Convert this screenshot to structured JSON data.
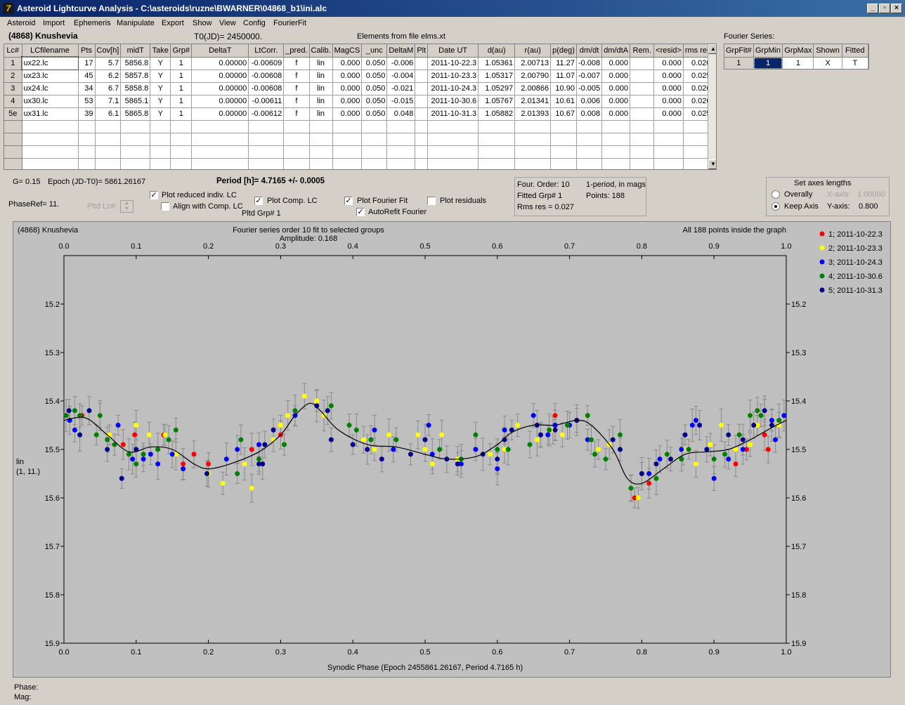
{
  "window": {
    "title": "Asteroid Lightcurve Analysis - C:\\asteroids\\ruzne\\BWARNER\\04868_b1\\ini.alc",
    "icon_name": "app-icon",
    "icon_glyph": "7"
  },
  "menu": [
    "Asteroid",
    "Import",
    "Ephemeris",
    "Manipulate",
    "Export",
    "Show",
    "View",
    "Config",
    "FourierFit"
  ],
  "header": {
    "asteroid": "(4868) Knushevia",
    "t0": "T0(JD)= 2450000.",
    "elements": "Elements from file elms.xt",
    "fourier_series_label": "Fourier Series:"
  },
  "lc_table": {
    "columns": [
      "Lc#",
      "LCfilename",
      "Pts",
      "Cov[h]",
      "midT",
      "Take",
      "Grp#",
      "DeltaT",
      "LtCorr.",
      "_pred.",
      "Calib.",
      "MagCS",
      "_unc",
      "DeltaM",
      "Plt",
      "Date UT",
      "d(au)",
      "r(au)",
      "p(deg)",
      "dm/dt",
      "dm/dtA",
      "Rem.",
      "<resid>",
      "rms res"
    ],
    "rows": [
      [
        "1",
        "ux22.lc",
        "17",
        "5.7",
        "5856.8",
        "Y",
        "1",
        "0.00000",
        "-0.00609",
        "f",
        "lin",
        "0.000",
        "0.050",
        "-0.006",
        "",
        "2011-10-22.3",
        "1.05361",
        "2.00713",
        "11.27",
        "-0.008",
        "0.000",
        "",
        "0.000",
        "0.020"
      ],
      [
        "2",
        "ux23.lc",
        "45",
        "6.2",
        "5857.8",
        "Y",
        "1",
        "0.00000",
        "-0.00608",
        "f",
        "lin",
        "0.000",
        "0.050",
        "-0.004",
        "",
        "2011-10-23.3",
        "1.05317",
        "2.00790",
        "11.07",
        "-0.007",
        "0.000",
        "",
        "0.000",
        "0.025"
      ],
      [
        "3",
        "ux24.lc",
        "34",
        "6.7",
        "5858.8",
        "Y",
        "1",
        "0.00000",
        "-0.00608",
        "f",
        "lin",
        "0.000",
        "0.050",
        "-0.021",
        "",
        "2011-10-24.3",
        "1.05297",
        "2.00866",
        "10.90",
        "-0.005",
        "0.000",
        "",
        "0.000",
        "0.026"
      ],
      [
        "4",
        "ux30.lc",
        "53",
        "7.1",
        "5865.1",
        "Y",
        "1",
        "0.00000",
        "-0.00611",
        "f",
        "lin",
        "0.000",
        "0.050",
        "-0.015",
        "",
        "2011-10-30.6",
        "1.05767",
        "2.01341",
        "10.61",
        "0.006",
        "0.000",
        "",
        "0.000",
        "0.026"
      ],
      [
        "5e",
        "ux31.lc",
        "39",
        "6.1",
        "5865.8",
        "Y",
        "1",
        "0.00000",
        "-0.00612",
        "f",
        "lin",
        "0.000",
        "0.050",
        "0.048",
        "",
        "2011-10-31.3",
        "1.05882",
        "2.01393",
        "10.67",
        "0.008",
        "0.000",
        "",
        "0.000",
        "0.025"
      ]
    ],
    "empty_rows": 4
  },
  "fs_table": {
    "columns": [
      "GrpFit#",
      "GrpMin",
      "GrpMax",
      "Shown",
      "Fitted"
    ],
    "row": [
      "1",
      "1",
      "1",
      "X",
      "T"
    ]
  },
  "params": {
    "g": "G= 0.15",
    "epoch": "Epoch (JD-T0)= 5861.26167",
    "period": "Period [h]= 4.7165 +/- 0.0005",
    "phaseref": "PhaseRef= 11.",
    "pltd_lc": "Pltd Lc#:",
    "pltd_grp": "Pltd Grp#  1"
  },
  "checkboxes": {
    "plot_reduced": {
      "label": "Plot reduced indiv. LC",
      "checked": true
    },
    "align_comp": {
      "label": "Align with Comp. LC",
      "checked": false
    },
    "plot_comp": {
      "label": "Plot Comp. LC",
      "checked": true
    },
    "plot_fourier": {
      "label": "Plot Fourier Fit",
      "checked": true
    },
    "autorefit": {
      "label": "AutoRefit Fourier",
      "checked": true
    },
    "plot_residuals": {
      "label": "Plot residuals",
      "checked": false
    }
  },
  "fit_info": {
    "order": "Four. Order: 10",
    "one_period": "1-period, in mags",
    "fitted_grp": "Fitted Grp# 1",
    "points": "Points: 188",
    "rms": "Rms res      = 0.027"
  },
  "axes_box": {
    "title": "Set axes lengths",
    "overally": "Overally",
    "keep_axis": "Keep Axis",
    "xaxis_label": "X-axis:",
    "xaxis_value": "1.00000",
    "yaxis_label": "Y-axis:",
    "yaxis_value": "0.800",
    "selected": "keep_axis"
  },
  "plot": {
    "top_left": "(4868) Knushevia",
    "top_center1": "Fourier series order 10 fit to selected groups",
    "top_center2": "Amplitude: 0.168",
    "top_right": "All 188 points inside the graph",
    "ylabel1": "lin",
    "ylabel2": "(1, 11.)",
    "xlabel": "Synodic Phase (Epoch 2455861.26167, Period 4.7165 h)"
  },
  "status": {
    "phase": "Phase:",
    "mag": "Mag:"
  },
  "chart_data": {
    "type": "scatter",
    "xlim": [
      0,
      1
    ],
    "ylim": [
      15.9,
      15.1
    ],
    "y_inverted": true,
    "x_ticks": [
      "0.0",
      "0.1",
      "0.2",
      "0.3",
      "0.4",
      "0.5",
      "0.6",
      "0.7",
      "0.8",
      "0.9",
      "1.0"
    ],
    "y_ticks": [
      "15.2",
      "15.3",
      "15.4",
      "15.5",
      "15.6",
      "15.7",
      "15.8",
      "15.9"
    ],
    "legend_placement": "right",
    "series": [
      {
        "name": "1; 2011-10-22.3",
        "color": "#ff0000",
        "points": [
          [
            0.025,
            15.43
          ],
          [
            0.082,
            15.49
          ],
          [
            0.098,
            15.47
          ],
          [
            0.138,
            15.47
          ],
          [
            0.165,
            15.53
          ],
          [
            0.18,
            15.51
          ],
          [
            0.2,
            15.53
          ],
          [
            0.26,
            15.5
          ],
          [
            0.3,
            15.47
          ],
          [
            0.68,
            15.43
          ],
          [
            0.79,
            15.6
          ],
          [
            0.81,
            15.57
          ],
          [
            0.93,
            15.53
          ],
          [
            0.945,
            15.5
          ],
          [
            0.97,
            15.47
          ],
          [
            0.975,
            15.5
          ]
        ]
      },
      {
        "name": "2; 2011-10-23.3",
        "color": "#ffff00",
        "points": [
          [
            0.05,
            15.43
          ],
          [
            0.063,
            15.47
          ],
          [
            0.1,
            15.45
          ],
          [
            0.118,
            15.47
          ],
          [
            0.14,
            15.47
          ],
          [
            0.155,
            15.51
          ],
          [
            0.2,
            15.55
          ],
          [
            0.22,
            15.57
          ],
          [
            0.25,
            15.53
          ],
          [
            0.26,
            15.58
          ],
          [
            0.29,
            15.48
          ],
          [
            0.3,
            15.45
          ],
          [
            0.31,
            15.43
          ],
          [
            0.333,
            15.39
          ],
          [
            0.35,
            15.4
          ],
          [
            0.36,
            15.43
          ],
          [
            0.415,
            15.48
          ],
          [
            0.43,
            15.5
          ],
          [
            0.45,
            15.47
          ],
          [
            0.49,
            15.47
          ],
          [
            0.5,
            15.5
          ],
          [
            0.51,
            15.53
          ],
          [
            0.523,
            15.47
          ],
          [
            0.545,
            15.52
          ],
          [
            0.59,
            15.51
          ],
          [
            0.6,
            15.52
          ],
          [
            0.61,
            15.5
          ],
          [
            0.628,
            15.45
          ],
          [
            0.655,
            15.48
          ],
          [
            0.677,
            15.46
          ],
          [
            0.69,
            15.47
          ],
          [
            0.74,
            15.5
          ],
          [
            0.755,
            15.49
          ],
          [
            0.785,
            15.58
          ],
          [
            0.795,
            15.6
          ],
          [
            0.857,
            15.5
          ],
          [
            0.875,
            15.53
          ],
          [
            0.895,
            15.49
          ],
          [
            0.91,
            15.45
          ],
          [
            0.93,
            15.5
          ],
          [
            0.95,
            15.49
          ],
          [
            0.96,
            15.45
          ],
          [
            0.97,
            15.42
          ],
          [
            0.99,
            15.45
          ]
        ]
      },
      {
        "name": "3; 2011-10-24.3",
        "color": "#0000ff",
        "points": [
          [
            0.008,
            15.44
          ],
          [
            0.015,
            15.46
          ],
          [
            0.075,
            15.45
          ],
          [
            0.095,
            15.52
          ],
          [
            0.11,
            15.52
          ],
          [
            0.12,
            15.51
          ],
          [
            0.13,
            15.53
          ],
          [
            0.15,
            15.51
          ],
          [
            0.165,
            15.54
          ],
          [
            0.225,
            15.52
          ],
          [
            0.24,
            15.5
          ],
          [
            0.27,
            15.49
          ],
          [
            0.32,
            15.43
          ],
          [
            0.43,
            15.46
          ],
          [
            0.456,
            15.5
          ],
          [
            0.505,
            15.45
          ],
          [
            0.51,
            15.51
          ],
          [
            0.55,
            15.53
          ],
          [
            0.57,
            15.5
          ],
          [
            0.6,
            15.54
          ],
          [
            0.61,
            15.46
          ],
          [
            0.65,
            15.43
          ],
          [
            0.67,
            15.47
          ],
          [
            0.68,
            15.45
          ],
          [
            0.7,
            15.45
          ],
          [
            0.725,
            15.48
          ],
          [
            0.81,
            15.55
          ],
          [
            0.825,
            15.52
          ],
          [
            0.855,
            15.5
          ],
          [
            0.87,
            15.45
          ],
          [
            0.875,
            15.44
          ],
          [
            0.9,
            15.56
          ],
          [
            0.92,
            15.52
          ],
          [
            0.94,
            15.5
          ],
          [
            0.985,
            15.48
          ],
          [
            0.98,
            15.44
          ],
          [
            0.997,
            15.43
          ]
        ]
      },
      {
        "name": "4; 2011-10-30.6",
        "color": "#008000",
        "points": [
          [
            0.003,
            15.43
          ],
          [
            0.015,
            15.42
          ],
          [
            0.022,
            15.43
          ],
          [
            0.045,
            15.47
          ],
          [
            0.05,
            15.43
          ],
          [
            0.06,
            15.48
          ],
          [
            0.07,
            15.49
          ],
          [
            0.09,
            15.51
          ],
          [
            0.1,
            15.53
          ],
          [
            0.11,
            15.51
          ],
          [
            0.13,
            15.5
          ],
          [
            0.145,
            15.48
          ],
          [
            0.155,
            15.46
          ],
          [
            0.24,
            15.55
          ],
          [
            0.245,
            15.48
          ],
          [
            0.27,
            15.52
          ],
          [
            0.305,
            15.49
          ],
          [
            0.32,
            15.42
          ],
          [
            0.37,
            15.41
          ],
          [
            0.395,
            15.45
          ],
          [
            0.405,
            15.46
          ],
          [
            0.425,
            15.48
          ],
          [
            0.46,
            15.48
          ],
          [
            0.52,
            15.5
          ],
          [
            0.55,
            15.52
          ],
          [
            0.57,
            15.47
          ],
          [
            0.6,
            15.5
          ],
          [
            0.615,
            15.5
          ],
          [
            0.645,
            15.49
          ],
          [
            0.66,
            15.47
          ],
          [
            0.672,
            15.46
          ],
          [
            0.697,
            15.45
          ],
          [
            0.71,
            15.44
          ],
          [
            0.725,
            15.43
          ],
          [
            0.73,
            15.48
          ],
          [
            0.735,
            15.51
          ],
          [
            0.75,
            15.52
          ],
          [
            0.77,
            15.47
          ],
          [
            0.785,
            15.58
          ],
          [
            0.8,
            15.55
          ],
          [
            0.82,
            15.56
          ],
          [
            0.835,
            15.51
          ],
          [
            0.855,
            15.52
          ],
          [
            0.865,
            15.5
          ],
          [
            0.9,
            15.52
          ],
          [
            0.915,
            15.51
          ],
          [
            0.935,
            15.47
          ],
          [
            0.95,
            15.43
          ],
          [
            0.96,
            15.42
          ],
          [
            0.965,
            15.43
          ],
          [
            0.99,
            15.44
          ]
        ]
      },
      {
        "name": "5; 2011-10-31.3",
        "color": "#00008b",
        "points": [
          [
            0.007,
            15.42
          ],
          [
            0.022,
            15.47
          ],
          [
            0.035,
            15.42
          ],
          [
            0.06,
            15.5
          ],
          [
            0.08,
            15.56
          ],
          [
            0.1,
            15.5
          ],
          [
            0.198,
            15.55
          ],
          [
            0.27,
            15.53
          ],
          [
            0.275,
            15.53
          ],
          [
            0.278,
            15.49
          ],
          [
            0.29,
            15.46
          ],
          [
            0.35,
            15.41
          ],
          [
            0.365,
            15.42
          ],
          [
            0.37,
            15.48
          ],
          [
            0.4,
            15.49
          ],
          [
            0.42,
            15.5
          ],
          [
            0.44,
            15.52
          ],
          [
            0.48,
            15.51
          ],
          [
            0.5,
            15.48
          ],
          [
            0.53,
            15.52
          ],
          [
            0.545,
            15.53
          ],
          [
            0.58,
            15.51
          ],
          [
            0.6,
            15.52
          ],
          [
            0.61,
            15.48
          ],
          [
            0.62,
            15.46
          ],
          [
            0.655,
            15.45
          ],
          [
            0.66,
            15.47
          ],
          [
            0.68,
            15.46
          ],
          [
            0.71,
            15.44
          ],
          [
            0.76,
            15.48
          ],
          [
            0.77,
            15.5
          ],
          [
            0.8,
            15.55
          ],
          [
            0.82,
            15.53
          ],
          [
            0.84,
            15.52
          ],
          [
            0.86,
            15.47
          ],
          [
            0.88,
            15.45
          ],
          [
            0.89,
            15.5
          ],
          [
            0.92,
            15.47
          ],
          [
            0.94,
            15.48
          ],
          [
            0.955,
            15.45
          ],
          [
            0.97,
            15.42
          ],
          [
            0.98,
            15.45
          ]
        ]
      }
    ],
    "fit_curve": [
      [
        0,
        15.44
      ],
      [
        0.03,
        15.435
      ],
      [
        0.06,
        15.47
      ],
      [
        0.09,
        15.505
      ],
      [
        0.12,
        15.495
      ],
      [
        0.15,
        15.5
      ],
      [
        0.18,
        15.53
      ],
      [
        0.2,
        15.54
      ],
      [
        0.23,
        15.53
      ],
      [
        0.27,
        15.505
      ],
      [
        0.3,
        15.47
      ],
      [
        0.32,
        15.43
      ],
      [
        0.34,
        15.405
      ],
      [
        0.355,
        15.42
      ],
      [
        0.38,
        15.46
      ],
      [
        0.42,
        15.49
      ],
      [
        0.46,
        15.495
      ],
      [
        0.5,
        15.51
      ],
      [
        0.53,
        15.52
      ],
      [
        0.57,
        15.515
      ],
      [
        0.6,
        15.49
      ],
      [
        0.62,
        15.465
      ],
      [
        0.65,
        15.45
      ],
      [
        0.68,
        15.45
      ],
      [
        0.71,
        15.44
      ],
      [
        0.73,
        15.45
      ],
      [
        0.76,
        15.5
      ],
      [
        0.78,
        15.56
      ],
      [
        0.8,
        15.57
      ],
      [
        0.83,
        15.54
      ],
      [
        0.86,
        15.51
      ],
      [
        0.89,
        15.505
      ],
      [
        0.92,
        15.5
      ],
      [
        0.95,
        15.48
      ],
      [
        0.98,
        15.455
      ],
      [
        1.0,
        15.44
      ]
    ]
  }
}
